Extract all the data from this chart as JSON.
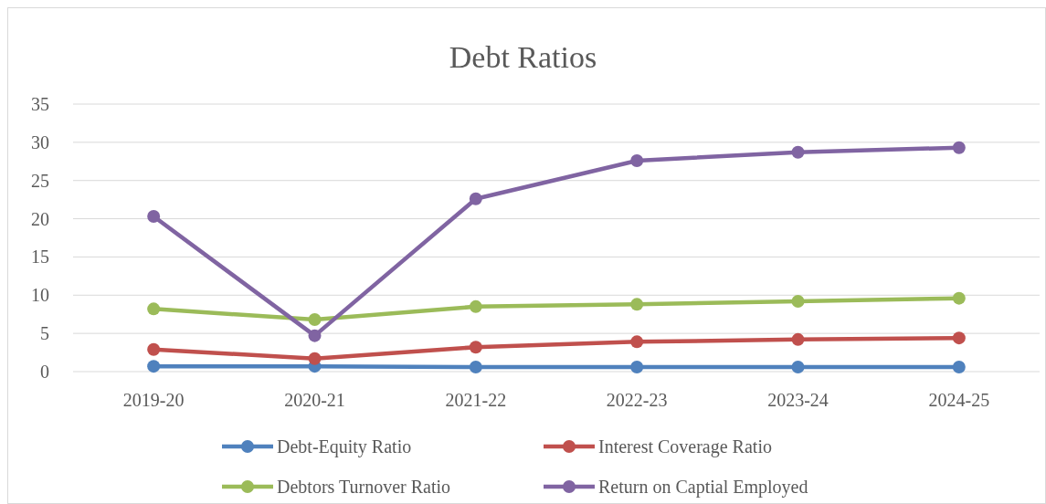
{
  "chart_data": {
    "type": "line",
    "title": "Debt Ratios",
    "categories": [
      "2019-20",
      "2020-21",
      "2021-22",
      "2022-23",
      "2023-24",
      "2024-25"
    ],
    "series": [
      {
        "name": "Debt-Equity Ratio",
        "color": "#4f81bd",
        "values": [
          0.7,
          0.7,
          0.6,
          0.6,
          0.6,
          0.6
        ]
      },
      {
        "name": "Interest Coverage Ratio",
        "color": "#c0504d",
        "values": [
          2.9,
          1.7,
          3.2,
          3.9,
          4.2,
          4.4
        ]
      },
      {
        "name": "Debtors Turnover Ratio",
        "color": "#9bbb59",
        "values": [
          8.2,
          6.8,
          8.5,
          8.8,
          9.2,
          9.6
        ]
      },
      {
        "name": "Return on Captial Employed",
        "color": "#8064a2",
        "values": [
          20.3,
          4.7,
          22.6,
          27.6,
          28.7,
          29.3
        ]
      }
    ],
    "ylim": [
      0,
      35
    ],
    "yticks": [
      0,
      5,
      10,
      15,
      20,
      25,
      30,
      35
    ],
    "grid": "y",
    "legend": "bottom",
    "marker": "circle",
    "line_style": "solid"
  }
}
